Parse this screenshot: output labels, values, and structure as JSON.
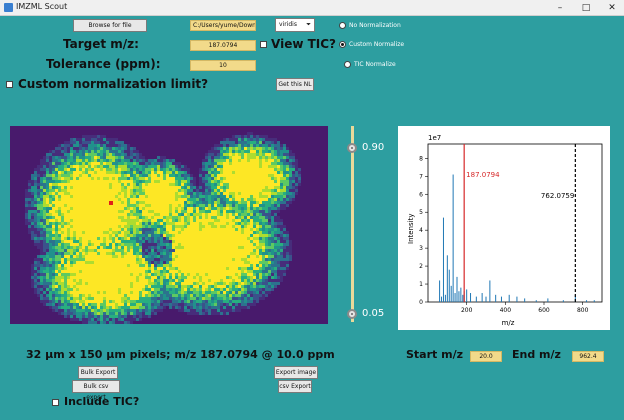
{
  "window": {
    "title": "IMZML Scout",
    "min": "–",
    "max": "□",
    "close": "✕"
  },
  "top": {
    "browse_label": "Browse for file",
    "file_path": "C:/Users/yume/Down",
    "colormap": "viridis",
    "target_label": "Target m/z:",
    "target_value": "187.0794",
    "view_tic_label": "View TIC?",
    "tolerance_label": "Tolerance (ppm):",
    "tolerance_value": "10",
    "custom_norm_label": "Custom normalization limit?",
    "get_tic_label": "Get this NL",
    "norm_options": [
      "No Normalization",
      "Custom Normalize",
      "TIC Normalize"
    ],
    "norm_selected": 1
  },
  "slider": {
    "max_label": "0.90",
    "min_label": "0.05",
    "max_value": 0.9,
    "min_value": 0.05
  },
  "spectrum": {
    "exponent_label": "1e7",
    "ylabel": "Intensity",
    "xlabel": "m/z",
    "xticks": [
      "200",
      "400",
      "600",
      "800"
    ],
    "yticks": [
      "0",
      "1",
      "2",
      "3",
      "4",
      "5",
      "6",
      "7",
      "8"
    ],
    "marker_target": "187.0794",
    "marker_other": "762.0759",
    "colors": {
      "bars": "#1f77b4",
      "target_line": "#d62728",
      "other_line": "#000000"
    }
  },
  "chart_data": {
    "type": "bar",
    "title": "",
    "xlabel": "m/z",
    "ylabel": "Intensity",
    "y_scale_label": "1e7",
    "xlim": [
      0,
      900
    ],
    "ylim": [
      0,
      8.8
    ],
    "x": [
      60,
      70,
      80,
      90,
      100,
      110,
      120,
      130,
      140,
      150,
      160,
      170,
      180,
      187,
      200,
      220,
      250,
      280,
      300,
      320,
      350,
      380,
      420,
      460,
      500,
      560,
      620,
      700,
      762,
      820,
      860
    ],
    "values": [
      1.2,
      0.3,
      4.7,
      0.4,
      2.6,
      1.8,
      0.9,
      7.1,
      0.5,
      1.4,
      0.6,
      0.8,
      0.4,
      0.6,
      0.7,
      0.5,
      0.3,
      0.5,
      0.3,
      1.2,
      0.4,
      0.3,
      0.4,
      0.3,
      0.2,
      0.1,
      0.2,
      0.1,
      0.4,
      0.1,
      0.1
    ]
  },
  "bottom": {
    "caption": "32 μm x 150 μm pixels; m/z 187.0794 @ 10.0 ppm",
    "start_label": "Start m/z",
    "start_value": "20.0",
    "end_label": "End m/z",
    "end_value": "962.4",
    "bulk_export": "Bulk Export",
    "bulk_csv_export": "Bulk csv export",
    "export_image": "Export image",
    "csv_export": "csv Export",
    "include_tic": "Include TIC?"
  }
}
